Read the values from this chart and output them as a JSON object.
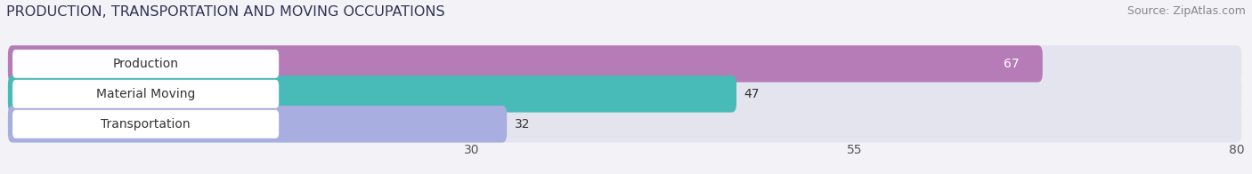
{
  "title": "PRODUCTION, TRANSPORTATION AND MOVING OCCUPATIONS",
  "source": "Source: ZipAtlas.com",
  "categories": [
    "Production",
    "Material Moving",
    "Transportation"
  ],
  "values": [
    67,
    47,
    32
  ],
  "colors": [
    "#b57cb8",
    "#48bab8",
    "#a8aee0"
  ],
  "xlim_min": 0,
  "xlim_max": 80,
  "xticks": [
    30,
    55,
    80
  ],
  "bar_height": 0.62,
  "title_fontsize": 11.5,
  "label_fontsize": 10,
  "value_fontsize": 10,
  "tick_fontsize": 10,
  "source_fontsize": 9,
  "background_color": "#f2f2f7",
  "bar_background_color": "#e4e4ee",
  "label_bg_color": "#ffffff",
  "value_label_color_production": "#ffffff",
  "value_label_color_others": "#333333",
  "grid_color": "#d0d0e0"
}
